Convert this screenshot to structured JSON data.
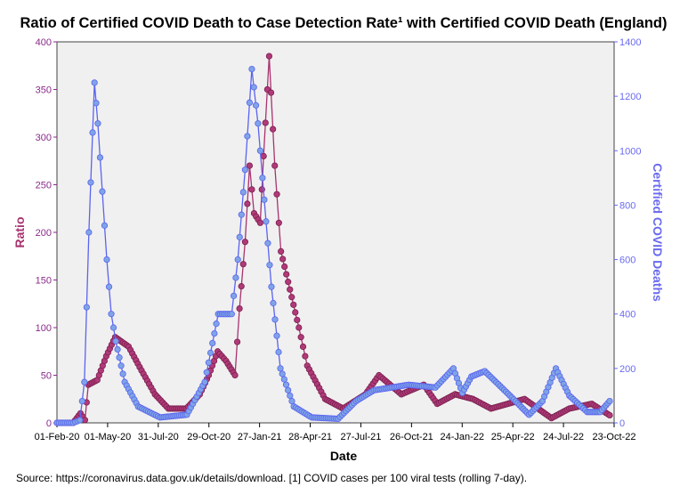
{
  "chart_data": {
    "type": "line",
    "title": "Ratio of Certified COVID Death to Case Detection Rate¹ with Certified COVID Death (England)",
    "xlabel": "Date",
    "ylabel": "Ratio",
    "y2label": "Certified COVID Deaths",
    "x_ticks": [
      "01-Feb-20",
      "01-May-20",
      "31-Jul-20",
      "29-Oct-20",
      "27-Jan-21",
      "28-Apr-21",
      "27-Jul-21",
      "26-Oct-21",
      "24-Jan-22",
      "25-Apr-22",
      "24-Jul-22",
      "23-Oct-22"
    ],
    "xlim": [
      "2020-02-01",
      "2022-10-23"
    ],
    "ylim": [
      0,
      400
    ],
    "y_ticks": [
      0,
      50,
      100,
      150,
      200,
      250,
      300,
      350,
      400
    ],
    "y2lim": [
      0,
      1400
    ],
    "y2_ticks": [
      0,
      200,
      400,
      600,
      800,
      1000,
      1200,
      1400
    ],
    "grid": false,
    "series": [
      {
        "name": "Ratio",
        "axis": "left",
        "color": "#a8336f",
        "x": [
          "2020-02-01",
          "2020-03-01",
          "2020-03-14",
          "2020-03-22",
          "2020-03-28",
          "2020-04-13",
          "2020-04-29",
          "2020-05-15",
          "2020-06-08",
          "2020-07-01",
          "2020-07-25",
          "2020-08-18",
          "2020-09-19",
          "2020-10-13",
          "2020-10-29",
          "2020-11-14",
          "2020-11-29",
          "2020-12-15",
          "2020-12-23",
          "2021-01-02",
          "2021-01-10",
          "2021-01-18",
          "2021-01-29",
          "2021-02-04",
          "2021-02-14",
          "2021-02-24",
          "2021-03-07",
          "2021-03-23",
          "2021-04-08",
          "2021-04-23",
          "2021-05-25",
          "2021-06-26",
          "2021-08-05",
          "2021-08-29",
          "2021-10-08",
          "2021-11-17",
          "2021-12-11",
          "2022-01-12",
          "2022-02-13",
          "2022-03-17",
          "2022-05-16",
          "2022-06-09",
          "2022-07-03",
          "2022-08-04",
          "2022-09-13",
          "2022-10-15"
        ],
        "values": [
          0,
          0,
          10,
          3,
          40,
          45,
          70,
          90,
          80,
          55,
          30,
          15,
          15,
          30,
          50,
          75,
          65,
          50,
          120,
          190,
          270,
          220,
          210,
          280,
          385,
          270,
          180,
          140,
          100,
          60,
          25,
          15,
          30,
          50,
          30,
          40,
          20,
          30,
          25,
          15,
          25,
          15,
          5,
          15,
          20,
          8
        ]
      },
      {
        "name": "Certified COVID Deaths",
        "axis": "right",
        "color": "#5b63f0",
        "x": [
          "2020-02-01",
          "2020-03-01",
          "2020-03-13",
          "2020-03-21",
          "2020-03-29",
          "2020-04-08",
          "2020-04-14",
          "2020-04-22",
          "2020-04-30",
          "2020-05-08",
          "2020-05-16",
          "2020-06-01",
          "2020-06-25",
          "2020-08-03",
          "2020-09-20",
          "2020-10-22",
          "2020-11-15",
          "2020-12-09",
          "2020-12-20",
          "2021-01-02",
          "2021-01-14",
          "2021-01-25",
          "2021-02-02",
          "2021-02-18",
          "2021-03-06",
          "2021-03-30",
          "2021-05-01",
          "2021-06-17",
          "2021-07-19",
          "2021-08-20",
          "2021-09-21",
          "2021-10-21",
          "2021-12-08",
          "2022-01-09",
          "2022-01-25",
          "2022-02-10",
          "2022-03-06",
          "2022-04-20",
          "2022-05-24",
          "2022-06-17",
          "2022-07-11",
          "2022-08-04",
          "2022-09-05",
          "2022-09-28",
          "2022-10-15"
        ],
        "values": [
          0,
          0,
          10,
          150,
          700,
          1250,
          1100,
          850,
          600,
          400,
          300,
          150,
          60,
          20,
          30,
          150,
          400,
          400,
          600,
          930,
          1300,
          1100,
          900,
          500,
          200,
          60,
          20,
          15,
          80,
          120,
          130,
          140,
          130,
          200,
          110,
          170,
          190,
          100,
          30,
          80,
          200,
          100,
          40,
          40,
          80
        ]
      }
    ],
    "legend": "none",
    "footnote": "Source: https://coronavirus.data.gov.uk/details/download. [1] COVID cases per 100 viral tests (rolling 7-day)."
  }
}
